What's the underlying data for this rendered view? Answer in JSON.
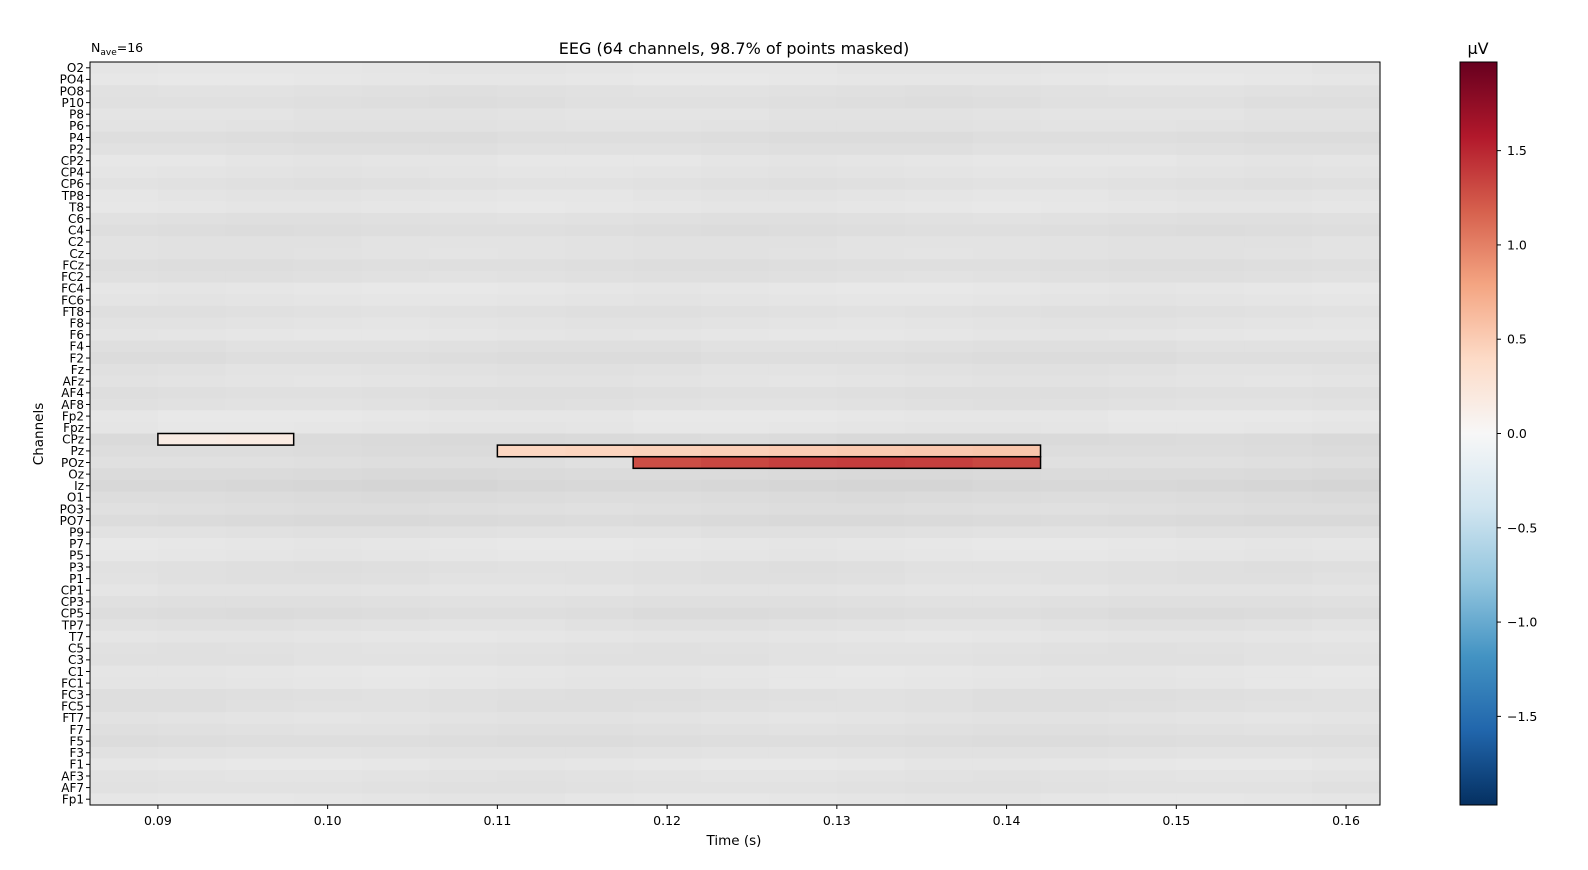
{
  "chart_data": {
    "type": "heatmap",
    "title": "EEG (64 channels, 98.7% of points masked)",
    "nave_label": {
      "prefix": "N",
      "subscript": "ave",
      "suffix": "=16"
    },
    "xlabel": "Time (s)",
    "ylabel": "Channels",
    "xlim": [
      0.086,
      0.162
    ],
    "x_ticks": [
      "0.09",
      "0.10",
      "0.11",
      "0.12",
      "0.13",
      "0.14",
      "0.15",
      "0.16"
    ],
    "x_tick_values": [
      0.09,
      0.1,
      0.11,
      0.12,
      0.13,
      0.14,
      0.15,
      0.16
    ],
    "channels": [
      "O2",
      "PO4",
      "PO8",
      "P10",
      "P8",
      "P6",
      "P4",
      "P2",
      "CP2",
      "CP4",
      "CP6",
      "TP8",
      "T8",
      "C6",
      "C4",
      "C2",
      "Cz",
      "FCz",
      "FC2",
      "FC4",
      "FC6",
      "FT8",
      "F8",
      "F6",
      "F4",
      "F2",
      "Fz",
      "AFz",
      "AF4",
      "AF8",
      "Fp2",
      "Fpz",
      "CPz",
      "Pz",
      "POz",
      "Oz",
      "Iz",
      "O1",
      "PO3",
      "PO7",
      "P9",
      "P7",
      "P5",
      "P3",
      "P1",
      "CP1",
      "CP3",
      "CP5",
      "TP7",
      "T7",
      "C5",
      "C3",
      "C1",
      "FC1",
      "FC3",
      "FC5",
      "FT7",
      "F7",
      "F5",
      "F3",
      "F1",
      "AF3",
      "AF7",
      "Fp1"
    ],
    "time_bins": 19,
    "mask_note": "Unmasked points drawn in full colour and outlined; all other points greyed",
    "unmasked_regions": [
      {
        "channel": "CPz",
        "t_start": 0.09,
        "t_end": 0.098,
        "values": [
          0.16,
          0.17
        ]
      },
      {
        "channel": "Pz",
        "t_start": 0.11,
        "t_end": 0.142,
        "values": [
          0.42,
          0.44,
          0.46,
          0.48,
          0.5,
          0.52,
          0.53,
          0.55
        ]
      },
      {
        "channel": "POz",
        "t_start": 0.118,
        "t_end": 0.142,
        "values": [
          1.28,
          1.32,
          1.36,
          1.38,
          1.36,
          1.32
        ]
      }
    ],
    "colorbar": {
      "label": "µV",
      "vmin": -1.97,
      "vmax": 1.97,
      "ticks": [
        "1.5",
        "1.0",
        "0.5",
        "0.0",
        "−0.5",
        "−1.0",
        "−1.5"
      ],
      "tick_values": [
        1.5,
        1.0,
        0.5,
        0.0,
        -0.5,
        -1.0,
        -1.5
      ],
      "colormap": "RdBu_r",
      "colormap_stops": [
        "#053061",
        "#2166ac",
        "#4393c3",
        "#92c5de",
        "#d1e5f0",
        "#f7f7f7",
        "#fddbc7",
        "#f4a582",
        "#d6604d",
        "#b2182b",
        "#67001f"
      ]
    },
    "grid": false
  }
}
